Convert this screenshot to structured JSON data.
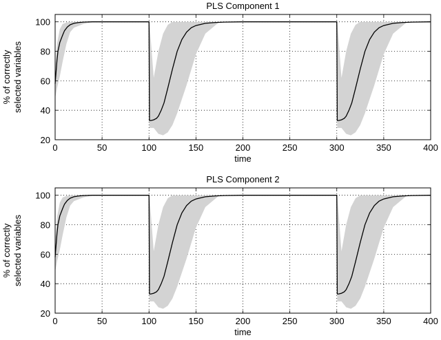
{
  "chart_data": [
    {
      "type": "line",
      "title": "PLS Component 1",
      "xlabel": "time",
      "ylabel_lines": [
        "% of correctly",
        "selected variables"
      ],
      "xlim": [
        0,
        400
      ],
      "ylim": [
        20,
        105
      ],
      "xticks": [
        0,
        50,
        100,
        150,
        200,
        250,
        300,
        350,
        400
      ],
      "yticks": [
        20,
        40,
        60,
        80,
        100
      ],
      "grid": true,
      "colors": {
        "line": "#000000",
        "band": "#d3d3d3"
      },
      "series": [
        {
          "kind": "line",
          "x": [
            0,
            1,
            2,
            3,
            5,
            8,
            10,
            13,
            16,
            20,
            25,
            30,
            40,
            60,
            80,
            99.5,
            100,
            100.5,
            102,
            105,
            108,
            110,
            113,
            116,
            120,
            125,
            130,
            135,
            140,
            145,
            150,
            160,
            170,
            180,
            200,
            250,
            299.5,
            300,
            300.5,
            302,
            305,
            308,
            310,
            313,
            316,
            320,
            325,
            330,
            335,
            340,
            345,
            350,
            360,
            370,
            380,
            400
          ],
          "y": [
            58,
            66,
            74,
            80,
            86,
            91,
            94,
            96.5,
            98,
            99,
            99.5,
            99.8,
            100,
            100,
            100,
            100,
            100,
            33,
            33,
            33.5,
            34.5,
            36,
            40,
            45,
            55,
            68,
            80,
            88,
            93,
            96,
            97.5,
            99,
            99.5,
            99.8,
            100,
            100,
            100,
            100,
            33,
            33,
            33.5,
            34.5,
            36,
            40,
            45,
            55,
            68,
            80,
            88,
            93,
            96,
            97.5,
            99,
            99.5,
            99.8,
            100
          ]
        },
        {
          "kind": "band",
          "x": [
            0,
            2,
            5,
            8,
            12,
            16,
            20,
            30,
            40,
            100,
            100.5,
            105,
            110,
            115,
            120,
            125,
            130,
            140,
            150,
            160,
            175,
            300,
            300.5,
            305,
            310,
            315,
            320,
            325,
            330,
            340,
            350,
            360,
            375,
            400
          ],
          "upper": [
            70,
            85,
            95,
            98.5,
            99.5,
            100,
            100,
            100,
            100,
            100,
            100,
            62,
            80,
            92,
            98,
            100,
            100,
            100,
            100,
            100,
            100,
            100,
            100,
            62,
            80,
            92,
            98,
            100,
            100,
            100,
            100,
            100,
            100,
            100
          ],
          "lower": [
            48,
            55,
            63,
            73,
            85,
            93,
            96,
            98.5,
            100,
            100,
            28,
            28,
            24,
            23,
            25,
            30,
            38,
            57,
            78,
            92,
            100,
            100,
            28,
            28,
            24,
            23,
            25,
            30,
            38,
            57,
            78,
            92,
            100,
            100
          ]
        }
      ]
    },
    {
      "type": "line",
      "title": "PLS Component 2",
      "xlabel": "time",
      "ylabel_lines": [
        "% of correctly",
        "selected variables"
      ],
      "xlim": [
        0,
        400
      ],
      "ylim": [
        20,
        105
      ],
      "xticks": [
        0,
        50,
        100,
        150,
        200,
        250,
        300,
        350,
        400
      ],
      "yticks": [
        20,
        40,
        60,
        80,
        100
      ],
      "grid": true,
      "colors": {
        "line": "#000000",
        "band": "#d3d3d3"
      },
      "series": [
        {
          "kind": "line",
          "x": [
            0,
            1,
            2,
            3,
            5,
            8,
            10,
            13,
            16,
            20,
            25,
            30,
            40,
            60,
            80,
            99.5,
            100,
            100.5,
            102,
            105,
            108,
            110,
            113,
            116,
            120,
            125,
            130,
            135,
            140,
            145,
            150,
            160,
            170,
            180,
            200,
            250,
            299.5,
            300,
            300.5,
            302,
            305,
            308,
            310,
            313,
            316,
            320,
            325,
            330,
            335,
            340,
            345,
            350,
            360,
            370,
            380,
            400
          ],
          "y": [
            58,
            66,
            74,
            80,
            86,
            91,
            94,
            96.5,
            98,
            99,
            99.5,
            99.8,
            100,
            100,
            100,
            100,
            100,
            33,
            33,
            33.5,
            34.5,
            36,
            40,
            45,
            55,
            68,
            80,
            88,
            93,
            96,
            97.5,
            99,
            99.5,
            99.8,
            100,
            100,
            100,
            100,
            33,
            33,
            33.5,
            34.5,
            36,
            40,
            45,
            55,
            68,
            80,
            88,
            93,
            96,
            97.5,
            99,
            99.5,
            99.8,
            100
          ]
        },
        {
          "kind": "band",
          "x": [
            0,
            2,
            5,
            8,
            12,
            16,
            20,
            30,
            40,
            100,
            100.5,
            105,
            110,
            115,
            120,
            125,
            130,
            140,
            150,
            160,
            175,
            300,
            300.5,
            305,
            310,
            315,
            320,
            325,
            330,
            340,
            350,
            360,
            375,
            400
          ],
          "upper": [
            70,
            85,
            95,
            98.5,
            99.5,
            100,
            100,
            100,
            100,
            100,
            100,
            62,
            80,
            92,
            98,
            100,
            100,
            100,
            100,
            100,
            100,
            100,
            100,
            62,
            80,
            92,
            98,
            100,
            100,
            100,
            100,
            100,
            100,
            100
          ],
          "lower": [
            48,
            55,
            63,
            73,
            85,
            93,
            96,
            98.5,
            100,
            100,
            28,
            28,
            24,
            23,
            25,
            30,
            38,
            57,
            78,
            92,
            100,
            100,
            28,
            28,
            24,
            23,
            25,
            30,
            38,
            57,
            78,
            92,
            100,
            100
          ]
        }
      ]
    }
  ]
}
